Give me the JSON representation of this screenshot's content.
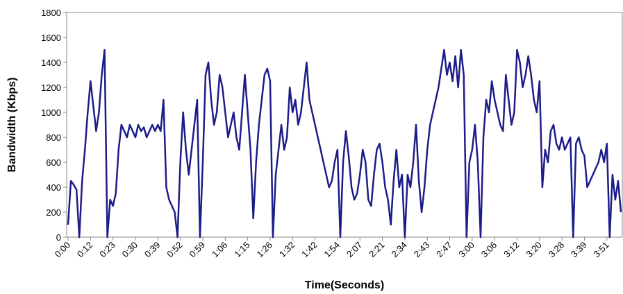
{
  "chart_data": {
    "type": "line",
    "x_label": "Time(Seconds)",
    "y_label": "Bandwidth (Kbps)",
    "categories": [
      "0:00",
      null,
      null,
      null,
      null,
      null,
      null,
      null,
      "0:12",
      null,
      null,
      null,
      null,
      null,
      null,
      null,
      "0:23",
      null,
      null,
      null,
      null,
      null,
      null,
      null,
      "0:30",
      null,
      null,
      null,
      null,
      null,
      null,
      null,
      "0:39",
      null,
      null,
      null,
      null,
      null,
      null,
      null,
      "0:52",
      null,
      null,
      null,
      null,
      null,
      null,
      null,
      "0:59",
      null,
      null,
      null,
      null,
      null,
      null,
      null,
      "1:06",
      null,
      null,
      null,
      null,
      null,
      null,
      null,
      "1:15",
      null,
      null,
      null,
      null,
      null,
      null,
      null,
      "1:26",
      null,
      null,
      null,
      null,
      null,
      null,
      null,
      "1:32",
      null,
      null,
      null,
      null,
      null,
      null,
      null,
      "1:42",
      null,
      null,
      null,
      null,
      null,
      null,
      null,
      "1:54",
      null,
      null,
      null,
      null,
      null,
      null,
      null,
      "2:07",
      null,
      null,
      null,
      null,
      null,
      null,
      null,
      "2:21",
      null,
      null,
      null,
      null,
      null,
      null,
      null,
      "2:34",
      null,
      null,
      null,
      null,
      null,
      null,
      null,
      "2:43",
      null,
      null,
      null,
      null,
      null,
      null,
      null,
      "2:47",
      null,
      null,
      null,
      null,
      null,
      null,
      null,
      "3:00",
      null,
      null,
      null,
      null,
      null,
      null,
      null,
      "3:06",
      null,
      null,
      null,
      null,
      null,
      null,
      null,
      "3:12",
      null,
      null,
      null,
      null,
      null,
      null,
      null,
      "3:20",
      null,
      null,
      null,
      null,
      null,
      null,
      null,
      "3:28",
      null,
      null,
      null,
      null,
      null,
      null,
      null,
      "3:39",
      null,
      null,
      null,
      null,
      null,
      null,
      null,
      "3:51",
      null,
      null,
      null,
      null,
      null
    ],
    "series": [
      {
        "color": "#1c1c8a",
        "values": [
          100,
          450,
          420,
          380,
          0,
          450,
          700,
          1000,
          1250,
          1050,
          850,
          1000,
          1300,
          1500,
          0,
          300,
          250,
          350,
          700,
          900,
          850,
          800,
          900,
          850,
          800,
          900,
          850,
          880,
          800,
          850,
          900,
          850,
          900,
          850,
          1100,
          400,
          300,
          250,
          200,
          0,
          600,
          1000,
          700,
          500,
          700,
          900,
          1100,
          0,
          600,
          1300,
          1400,
          1100,
          900,
          1000,
          1300,
          1200,
          1000,
          800,
          900,
          1000,
          800,
          700,
          1000,
          1300,
          1000,
          700,
          150,
          600,
          900,
          1100,
          1300,
          1350,
          1250,
          0,
          500,
          700,
          900,
          700,
          800,
          1200,
          1000,
          1100,
          900,
          1000,
          1200,
          1400,
          1100,
          1000,
          900,
          800,
          700,
          600,
          500,
          400,
          450,
          600,
          700,
          0,
          600,
          850,
          650,
          400,
          300,
          350,
          500,
          700,
          600,
          300,
          250,
          500,
          700,
          750,
          600,
          400,
          300,
          100,
          450,
          700,
          400,
          500,
          0,
          500,
          400,
          600,
          900,
          450,
          200,
          400,
          700,
          900,
          1000,
          1100,
          1200,
          1350,
          1500,
          1300,
          1400,
          1250,
          1450,
          1200,
          1500,
          1300,
          0,
          600,
          700,
          900,
          600,
          0,
          800,
          1100,
          1000,
          1250,
          1100,
          1000,
          900,
          850,
          1300,
          1100,
          900,
          1000,
          1500,
          1400,
          1200,
          1300,
          1450,
          1300,
          1100,
          1000,
          1250,
          400,
          700,
          600,
          850,
          900,
          750,
          700,
          800,
          700,
          750,
          800,
          0,
          750,
          800,
          700,
          650,
          400,
          450,
          500,
          550,
          600,
          700,
          600,
          750,
          0,
          500,
          300,
          450,
          200
        ]
      }
    ],
    "ylim": [
      0,
      1800
    ],
    "yticks": [
      0,
      200,
      400,
      600,
      800,
      1000,
      1200,
      1400,
      1600,
      1800
    ]
  }
}
